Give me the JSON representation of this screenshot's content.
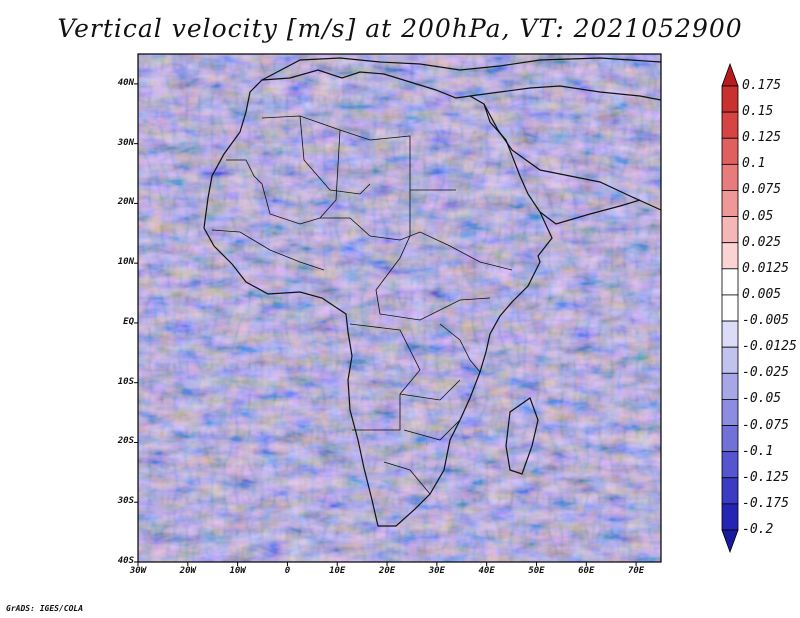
{
  "title": "Vertical velocity [m/s] at 200hPa, VT: 2021052900",
  "footer": "GrADS: IGES/COLA",
  "map": {
    "lon_range": [
      -30,
      75
    ],
    "lat_range": [
      -40,
      45
    ],
    "lat_ticks": [
      "40N",
      "30N",
      "20N",
      "10N",
      "EQ",
      "10S",
      "20S",
      "30S",
      "40S"
    ],
    "lon_ticks": [
      "30W",
      "20W",
      "10W",
      "0",
      "10E",
      "20E",
      "30E",
      "40E",
      "50E",
      "60E",
      "70E"
    ],
    "field": "vertical velocity (blue = negative, red = positive)"
  },
  "colorbar": {
    "labels": [
      "0.175",
      "0.15",
      "0.125",
      "0.1",
      "0.075",
      "0.05",
      "0.025",
      "0.0125",
      "0.005",
      "-0.005",
      "-0.0125",
      "-0.025",
      "-0.05",
      "-0.075",
      "-0.1",
      "-0.125",
      "-0.175",
      "-0.2"
    ],
    "colors": [
      "#b71c1c",
      "#c93030",
      "#d74444",
      "#e05f5f",
      "#e87b7b",
      "#ef9898",
      "#f5b6b6",
      "#fad4d4",
      "#ffffff",
      "#ffffff",
      "#dcdcf6",
      "#c2c2ef",
      "#a7a7e8",
      "#8c8ce0",
      "#7171d8",
      "#5555cf",
      "#3b3bc4",
      "#2525b5",
      "#1a1aa0"
    ]
  }
}
